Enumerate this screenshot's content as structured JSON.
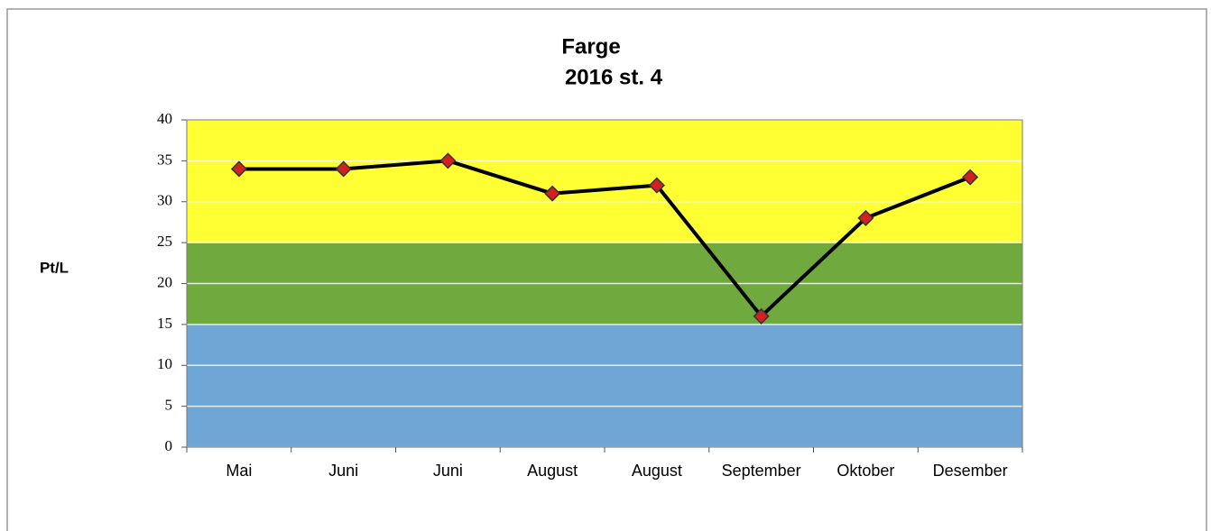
{
  "chart_data": {
    "type": "line",
    "title": "Farge",
    "subtitle": "2016 st. 4",
    "y_label": "Pt/L",
    "categories": [
      "Mai",
      "Juni",
      "Juni",
      "August",
      "August",
      "September",
      "Oktober",
      "Desember"
    ],
    "series": [
      {
        "name": "Farge",
        "color": "#000000",
        "marker_color": "#d42020",
        "values": [
          34,
          34,
          35,
          31,
          32,
          16,
          28,
          33
        ]
      }
    ],
    "ylim": [
      0,
      40
    ],
    "yticks": [
      0,
      5,
      10,
      15,
      20,
      25,
      30,
      35,
      40
    ],
    "grid": true,
    "bands": [
      {
        "from": 0,
        "to": 15,
        "color": "#6fa6d6"
      },
      {
        "from": 15,
        "to": 25,
        "color": "#70aa3f"
      },
      {
        "from": 25,
        "to": 40,
        "color": "#ffff33"
      }
    ]
  }
}
